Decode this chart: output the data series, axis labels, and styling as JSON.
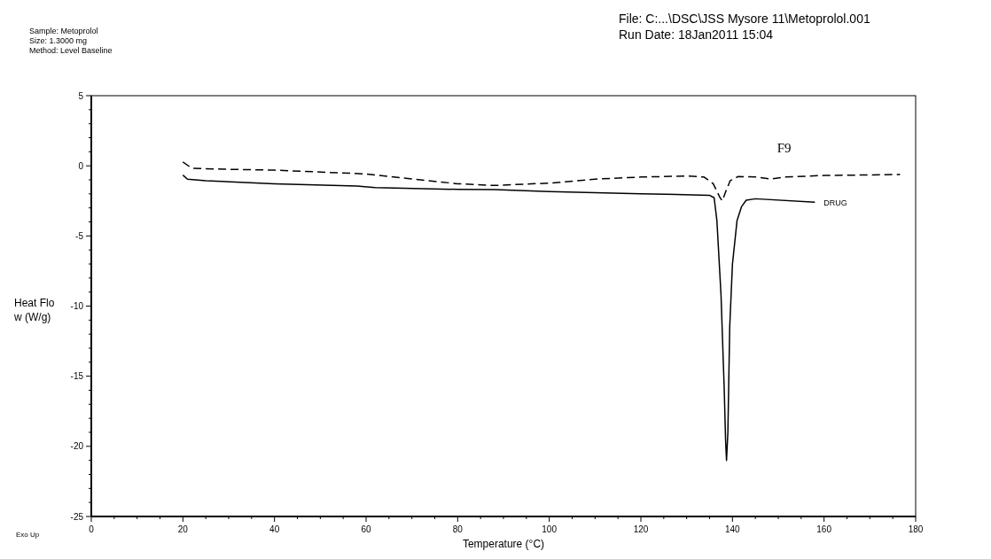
{
  "chart_data": {
    "type": "line",
    "xlabel": "Temperature (°C)",
    "ylabel": "Heat Flow (W/g)",
    "annotations": [
      "Sample: Metoprolol",
      "Size: 1.3000 mg",
      "Method: Level Baseline",
      "File: C:...\\DSC\\JSS Mysore 11\\Metoprolol.001",
      "Run Date: 18Jan2011 15:04",
      "Exo Up"
    ],
    "xlim": [
      0,
      180
    ],
    "xticks": [
      0,
      20,
      40,
      60,
      80,
      100,
      120,
      140,
      160,
      180
    ],
    "ylim": [
      -25,
      5
    ],
    "yticks": [
      -25,
      -20,
      -15,
      -10,
      -5,
      0,
      5
    ],
    "grid": false,
    "series": [
      {
        "name": "F9",
        "color": "#000000",
        "line_style": "dashed",
        "x": [
          20,
          22,
          30,
          40,
          60,
          80,
          88,
          95,
          100,
          110,
          120,
          130,
          133.8,
          135.8,
          137.3,
          137.8,
          138.4,
          139.5,
          141.2,
          145.3,
          148.3,
          151.3,
          160,
          176.6
        ],
        "values": [
          0.27,
          -0.18,
          -0.25,
          -0.31,
          -0.58,
          -1.28,
          -1.4,
          -1.3,
          -1.24,
          -0.95,
          -0.8,
          -0.73,
          -0.8,
          -1.28,
          -2.28,
          -2.5,
          -1.95,
          -1.06,
          -0.77,
          -0.8,
          -0.95,
          -0.8,
          -0.69,
          -0.62
        ]
      },
      {
        "name": "DRUG",
        "color": "#000000",
        "line_style": "solid",
        "x": [
          20,
          21,
          25,
          40,
          58,
          62,
          80,
          88,
          100,
          120,
          135,
          136,
          136.6,
          137.5,
          138.2,
          138.5,
          138.7,
          139,
          139.4,
          140,
          141,
          142,
          143,
          145,
          158
        ],
        "values": [
          -0.66,
          -0.95,
          -1.06,
          -1.28,
          -1.44,
          -1.55,
          -1.68,
          -1.7,
          -1.84,
          -1.99,
          -2.1,
          -2.28,
          -3.9,
          -9.2,
          -15.9,
          -19.6,
          -21.0,
          -19.0,
          -11.5,
          -7.0,
          -3.9,
          -2.9,
          -2.45,
          -2.35,
          -2.6
        ]
      }
    ]
  }
}
